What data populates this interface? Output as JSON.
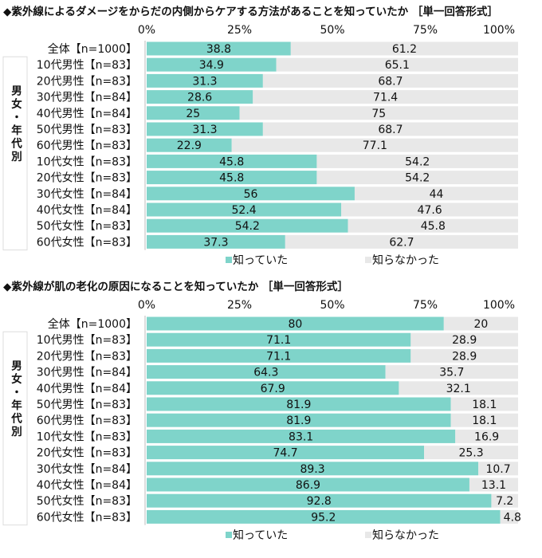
{
  "colors": {
    "knew": "#7fd4ca",
    "did_not_know": "#e8e8e8"
  },
  "chart_data": [
    {
      "type": "bar",
      "stacked": true,
      "orientation": "horizontal",
      "title": "◆紫外線によるダメージをからだの内側からケアする方法があることを知っていたか ［単一回答形式］",
      "x_ticks": [
        "0%",
        "25%",
        "50%",
        "75%",
        "100%"
      ],
      "xlim": [
        0,
        100
      ],
      "group_label": "男女・年代別",
      "legend_position": "bottom",
      "categories": [
        "全体【n=1000】",
        "10代男性【n=83】",
        "20代男性【n=83】",
        "30代男性【n=84】",
        "40代男性【n=84】",
        "50代男性【n=83】",
        "60代男性【n=83】",
        "10代女性【n=83】",
        "20代女性【n=83】",
        "30代女性【n=84】",
        "40代女性【n=84】",
        "50代女性【n=83】",
        "60代女性【n=83】"
      ],
      "series": [
        {
          "name": "知っていた",
          "values": [
            38.8,
            34.9,
            31.3,
            28.6,
            25.0,
            31.3,
            22.9,
            45.8,
            45.8,
            56.0,
            52.4,
            54.2,
            37.3
          ]
        },
        {
          "name": "知らなかった",
          "values": [
            61.2,
            65.1,
            68.7,
            71.4,
            75.0,
            68.7,
            77.1,
            54.2,
            54.2,
            44.0,
            47.6,
            45.8,
            62.7
          ]
        }
      ]
    },
    {
      "type": "bar",
      "stacked": true,
      "orientation": "horizontal",
      "title": "◆紫外線が肌の老化の原因になることを知っていたか ［単一回答形式］",
      "x_ticks": [
        "0%",
        "25%",
        "50%",
        "75%",
        "100%"
      ],
      "xlim": [
        0,
        100
      ],
      "group_label": "男女・年代別",
      "legend_position": "bottom",
      "categories": [
        "全体【n=1000】",
        "10代男性【n=83】",
        "20代男性【n=83】",
        "30代男性【n=84】",
        "40代男性【n=84】",
        "50代男性【n=83】",
        "60代男性【n=83】",
        "10代女性【n=83】",
        "20代女性【n=83】",
        "30代女性【n=84】",
        "40代女性【n=84】",
        "50代女性【n=83】",
        "60代女性【n=83】"
      ],
      "series": [
        {
          "name": "知っていた",
          "values": [
            80.0,
            71.1,
            71.1,
            64.3,
            67.9,
            81.9,
            81.9,
            83.1,
            74.7,
            89.3,
            86.9,
            92.8,
            95.2
          ]
        },
        {
          "name": "知らなかった",
          "values": [
            20.0,
            28.9,
            28.9,
            35.7,
            32.1,
            18.1,
            18.1,
            16.9,
            25.3,
            10.7,
            13.1,
            7.2,
            4.8
          ]
        }
      ]
    }
  ]
}
